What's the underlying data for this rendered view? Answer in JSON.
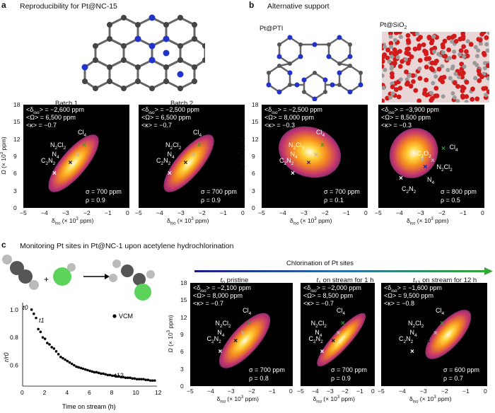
{
  "panels": {
    "a": {
      "letter": "a",
      "title": "Reproducibility for Pt@NC-15",
      "subplots": [
        {
          "title": "Batch 1",
          "ann": [
            "<δiso> = −2,600 ppm",
            "<Ω> = 6,500 ppm",
            "<κ> = −0.7"
          ],
          "stats": [
            "σ = 700 ppm",
            "ρ = 0.9"
          ],
          "sites": [
            "Cl4",
            "N2Cl2",
            "N4",
            "C2N2"
          ]
        },
        {
          "title": "Batch 2",
          "ann": [
            "<δiso> = −2,500 ppm",
            "<Ω> = 6,500 ppm",
            "<κ> = −0.7"
          ],
          "stats": [
            "σ = 700 ppm",
            "ρ = 0.9"
          ],
          "sites": [
            "Cl4",
            "N2Cl2",
            "N4",
            "C2N2"
          ]
        }
      ]
    },
    "b": {
      "letter": "b",
      "title": "Alternative support",
      "support1": "Pt@PTI",
      "support2": "Pt@SiO2",
      "subplots": [
        {
          "ann": [
            "<δiso> = −2,500 ppm",
            "<Ω> = 8,000 ppm",
            "<κ> = −0.3"
          ],
          "stats": [
            "σ = 700 ppm",
            "ρ = 0.1"
          ],
          "sites": [
            "Cl4",
            "N2Cl2",
            "N4",
            "C2N2"
          ]
        },
        {
          "ann": [
            "<δiso> = −3,900 ppm",
            "<Ω> = 8,500 ppm",
            "<κ> = −0.3"
          ],
          "stats": [
            "σ = 800 ppm",
            "ρ = 0.5"
          ],
          "sites": [
            "Cl4",
            "C2O2",
            "N2Cl2",
            "N4",
            "C2N2"
          ]
        }
      ]
    },
    "c": {
      "letter": "c",
      "title": "Monitoring Pt sites in Pt@NC-1 upon acetylene hydrochlorination",
      "chlorination_label": "Chlorination of Pt sites",
      "subplots": [
        {
          "title": "t0 pristine",
          "ann": [
            "<δiso> = −2,100 ppm",
            "<Ω> = 8,000 ppm",
            "<κ> = −0.7"
          ],
          "stats": [
            "σ = 700 ppm",
            "ρ = 0.8"
          ],
          "sites": [
            "Cl4",
            "N2Cl2",
            "N4",
            "C2N2"
          ]
        },
        {
          "title": "t1 on stream for 1 h",
          "ann": [
            "<δiso> = −2,000 ppm",
            "<Ω> = 8,500 ppm",
            "<κ> = −0.7"
          ],
          "stats": [
            "σ = 700 ppm",
            "ρ = 0.9"
          ],
          "sites": [
            "Cl4",
            "N2Cl2",
            "N4",
            "C2N2"
          ]
        },
        {
          "title": "t12 on stream for 12 h",
          "ann": [
            "<δiso> = −1,600 ppm",
            "<Ω> = 9,500 ppm",
            "<κ> = −0.8"
          ],
          "stats": [
            "σ = 600 ppm",
            "ρ = 0.7"
          ],
          "sites": [
            "Cl4",
            "N2Cl2",
            "N4",
            "C2N2"
          ]
        }
      ]
    }
  },
  "axes": {
    "xlabel": "δiso (× 10³ ppm)",
    "ylabel": "Ω (× 10³ ppm)",
    "xticks": [
      "−5",
      "−4",
      "−3",
      "−2",
      "−1",
      "0"
    ],
    "yticks": [
      "18",
      "15",
      "12",
      "9",
      "6",
      "3",
      "0"
    ]
  },
  "chart_data": [
    {
      "type": "scatter",
      "title": "",
      "xlabel": "Time on stream (h)",
      "ylabel": "r/r0",
      "xlim": [
        0,
        12
      ],
      "ylim": [
        0.45,
        1.05
      ],
      "xticks": [
        "0",
        "2",
        "4",
        "6",
        "8",
        "10",
        "12"
      ],
      "yticks": [
        "0.6",
        "0.8",
        "1.0"
      ],
      "annotations": [
        "t0",
        "t1",
        "t12"
      ],
      "series": [
        {
          "name": "VCM",
          "x": [
            0.8,
            1.0,
            1.2,
            1.4,
            1.6,
            1.8,
            2.0,
            2.2,
            2.4,
            2.6,
            2.8,
            3.0,
            3.2,
            3.4,
            3.6,
            3.8,
            4.0,
            4.2,
            4.4,
            4.6,
            4.8,
            5.0,
            5.2,
            5.4,
            5.6,
            5.8,
            6.0,
            6.2,
            6.4,
            6.6,
            6.8,
            7.0,
            7.2,
            7.4,
            7.6,
            7.8,
            8.0,
            8.2,
            8.4,
            8.6,
            8.8,
            9.0,
            9.2,
            9.4,
            9.6,
            9.8,
            10.0,
            10.2,
            10.4,
            10.6,
            10.8,
            11.0,
            11.2,
            11.4,
            11.6,
            11.8
          ],
          "y": [
            1.0,
            0.97,
            0.94,
            0.86,
            0.84,
            0.8,
            0.79,
            0.76,
            0.75,
            0.73,
            0.72,
            0.7,
            0.68,
            0.66,
            0.65,
            0.64,
            0.63,
            0.62,
            0.61,
            0.6,
            0.59,
            0.585,
            0.58,
            0.575,
            0.57,
            0.565,
            0.56,
            0.555,
            0.55,
            0.55,
            0.545,
            0.54,
            0.54,
            0.535,
            0.53,
            0.53,
            0.525,
            0.525,
            0.52,
            0.52,
            0.515,
            0.515,
            0.51,
            0.51,
            0.51,
            0.505,
            0.505,
            0.5,
            0.5,
            0.5,
            0.5,
            0.495,
            0.495,
            0.49,
            0.49,
            0.49
          ]
        }
      ]
    }
  ]
}
